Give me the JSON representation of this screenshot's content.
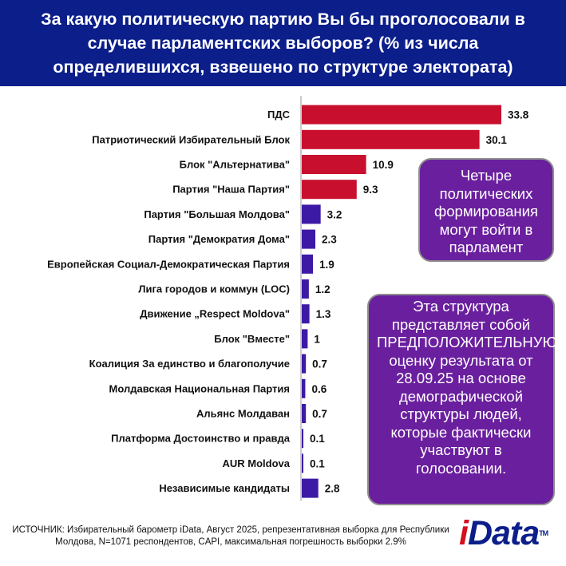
{
  "header": {
    "title": "За какую политическую партию Вы бы проголосовали в случае парламентских выборов? (% из числа определившихся, взвешено по структуре электората)"
  },
  "chart_data": {
    "type": "bar",
    "orientation": "horizontal",
    "categories": [
      "ПДС",
      "Патриотический Избирательный Блок",
      "Блок \"Альтернатива\"",
      "Партия \"Наша Партия\"",
      "Партия \"Большая Молдова\"",
      "Партия \"Демократия Дома\"",
      "Европейская Социал-Демократическая Партия",
      "Лига городов и коммун (LOC)",
      "Движение „Respect Moldova\"",
      "Блок \"Вместе\"",
      "Коалиция За единство и благополучие",
      "Молдавская Национальная Партия",
      "Альянс Молдаван",
      "Платформа Достоинство и правда",
      "AUR Moldova",
      "Независимые кандидаты"
    ],
    "values": [
      33.8,
      30.1,
      10.9,
      9.3,
      3.2,
      2.3,
      1.9,
      1.2,
      1.3,
      1,
      0.7,
      0.6,
      0.7,
      0.1,
      0.1,
      2.8
    ],
    "value_labels": [
      "33.8",
      "30.1",
      "10.9",
      "9.3",
      "3.2",
      "2.3",
      "1.9",
      "1.2",
      "1.3",
      "1",
      "0.7",
      "0.6",
      "0.7",
      "0.1",
      "0.1",
      "2.8"
    ],
    "colors": [
      "#c8102e",
      "#c8102e",
      "#c8102e",
      "#c8102e",
      "#3d1aa6",
      "#3d1aa6",
      "#3d1aa6",
      "#3d1aa6",
      "#3d1aa6",
      "#3d1aa6",
      "#3d1aa6",
      "#3d1aa6",
      "#3d1aa6",
      "#3d1aa6",
      "#3d1aa6",
      "#3d1aa6"
    ],
    "title": "",
    "xlabel": "",
    "ylabel": "",
    "xlim": [
      0,
      33.8
    ],
    "grid": false,
    "legend": "none"
  },
  "notes": {
    "box1": "Четыре политических формирования могут войти в парламент",
    "box2": "Эта структура представляет собой ПРЕДПОЛОЖИТЕЛЬНУЮ оценку результата от 28.09.25 на основе демографической структуры людей, которые фактически участвуют в голосовании."
  },
  "footer": {
    "source": "ИСТОЧНИК: Избирательный барометр iData, Август 2025, репрезентативная выборка для Республики Молдова, N=1071 респондентов, CAPI, максимальная погрешность выборки 2.9%"
  },
  "logo": {
    "i": "i",
    "rest": "Data",
    "tm": "TM"
  },
  "colors": {
    "header_bg": "#0b1e8a",
    "note_bg": "#6a1f9e",
    "bar_major": "#c8102e",
    "bar_minor": "#3d1aa6"
  }
}
